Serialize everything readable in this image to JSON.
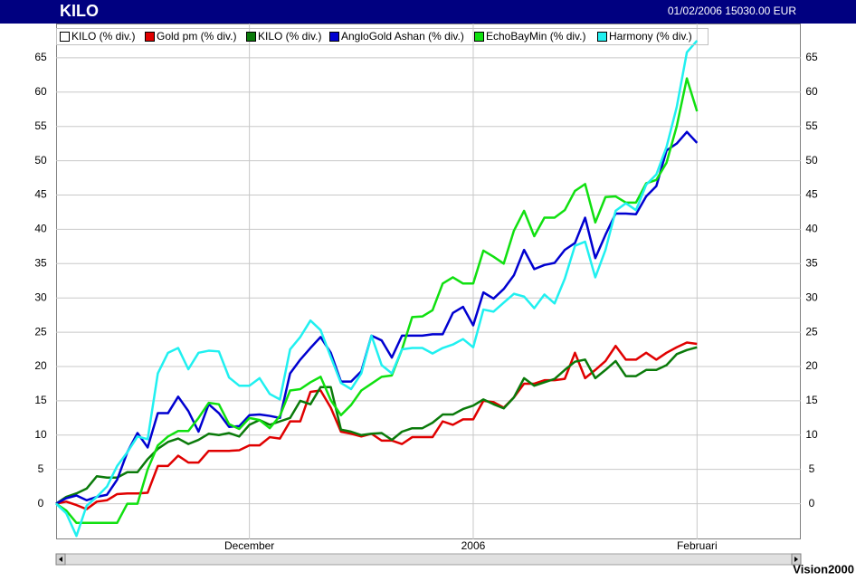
{
  "chart_data": {
    "type": "line",
    "title": "KILO",
    "subtitle": "01/02/2006 15030.00 EUR",
    "footer": "Vision2000",
    "series": [
      {
        "name": "KILO (% div.)",
        "color": "#ffffff",
        "values": [
          0,
          1,
          1.5,
          2.2,
          4,
          3.8,
          3.8,
          4.6,
          4.6,
          6.5,
          8,
          9,
          9.5,
          8.7,
          9.3,
          10.2,
          10,
          10.3,
          9.8,
          11.5,
          12.2,
          11.5,
          12,
          12.5,
          15,
          14.5,
          17,
          17,
          10.8,
          10.5,
          10,
          10.2,
          10.3,
          9.3,
          10.5,
          11,
          11,
          11.8,
          13,
          13,
          13.8,
          14.3,
          15.2,
          14.5,
          13.9,
          15.5,
          18.3,
          17.2,
          17.7,
          18.2,
          19.5,
          20.7,
          21,
          18.3,
          19.5,
          20.8,
          18.6,
          18.6,
          19.5,
          19.5,
          20.2,
          21.8,
          22.4,
          22.8
        ]
      },
      {
        "name": "Gold pm (% div.)",
        "color": "#e00000",
        "values": [
          0,
          0.3,
          -0.2,
          -0.8,
          0.3,
          0.5,
          1.4,
          1.5,
          1.5,
          1.6,
          5.5,
          5.5,
          7,
          6,
          6,
          7.7,
          7.7,
          7.7,
          7.8,
          8.5,
          8.5,
          9.7,
          9.5,
          12,
          12,
          16.3,
          16.5,
          14,
          10.5,
          10.2,
          9.8,
          10.2,
          9.2,
          9.2,
          8.7,
          9.7,
          9.7,
          9.7,
          12,
          11.5,
          12.3,
          12.3,
          15,
          14.8,
          14,
          15.5,
          17.5,
          17.5,
          18,
          18,
          18.2,
          22,
          18.3,
          19.5,
          20.8,
          23,
          21,
          21,
          22,
          21,
          22,
          22.8,
          23.5,
          23.3
        ]
      },
      {
        "name": "KILO (% div.)",
        "color": "#0a7a0a",
        "values": [
          0,
          1,
          1.5,
          2.2,
          4,
          3.8,
          3.8,
          4.6,
          4.6,
          6.5,
          8,
          9,
          9.5,
          8.7,
          9.3,
          10.2,
          10,
          10.3,
          9.8,
          11.5,
          12.2,
          11.5,
          12,
          12.5,
          15,
          14.5,
          17,
          17,
          10.8,
          10.5,
          10,
          10.2,
          10.3,
          9.3,
          10.5,
          11,
          11,
          11.8,
          13,
          13,
          13.8,
          14.3,
          15.2,
          14.5,
          13.9,
          15.5,
          18.3,
          17.2,
          17.7,
          18.2,
          19.5,
          20.7,
          21,
          18.3,
          19.5,
          20.8,
          18.6,
          18.6,
          19.5,
          19.5,
          20.2,
          21.8,
          22.4,
          22.8
        ]
      },
      {
        "name": "AngloGold Ashan (% div.)",
        "color": "#0000d0",
        "values": [
          0,
          0.8,
          1.2,
          0.5,
          1,
          1.3,
          3.5,
          7.5,
          10.3,
          8.2,
          13.2,
          13.2,
          15.6,
          13.5,
          10.5,
          14.5,
          13.2,
          11.2,
          11.3,
          12.9,
          13,
          12.8,
          12.5,
          19,
          21,
          22.7,
          24.3,
          22,
          17.8,
          17.8,
          19.3,
          24.5,
          23.8,
          21.3,
          24.5,
          24.5,
          24.5,
          24.7,
          24.7,
          27.8,
          28.7,
          26,
          30.8,
          29.9,
          31.3,
          33.3,
          37,
          34.2,
          34.8,
          35.1,
          37,
          38,
          41.7,
          35.8,
          39.2,
          42.3,
          42.3,
          42.2,
          44.8,
          46.3,
          51.5,
          52.5,
          54.2,
          52.6
        ]
      },
      {
        "name": "EchoBayMin (% div.)",
        "color": "#10e010",
        "values": [
          0,
          -1,
          -2.8,
          -2.8,
          -2.8,
          -2.8,
          -2.8,
          0,
          0,
          5,
          8.5,
          9.8,
          10.6,
          10.6,
          12.5,
          14.7,
          14.5,
          11.6,
          10.9,
          12.5,
          12.2,
          11,
          12.8,
          16.5,
          16.7,
          17.7,
          18.5,
          15.1,
          12.9,
          14.4,
          16.5,
          17.5,
          18.5,
          18.7,
          22.5,
          27.2,
          27.3,
          28.2,
          32.1,
          33,
          32.1,
          32.1,
          36.9,
          36,
          35,
          39.8,
          42.7,
          39,
          41.7,
          41.7,
          42.8,
          45.6,
          46.6,
          41,
          44.7,
          44.8,
          43.9,
          43.9,
          46.7,
          47.2,
          49.7,
          55,
          62,
          57.2
        ]
      },
      {
        "name": "Harmony (% div.)",
        "color": "#20f0f0",
        "values": [
          0,
          -1.4,
          -4.7,
          -0.3,
          1,
          2.5,
          5.5,
          7.5,
          9.8,
          9.4,
          19,
          22,
          22.7,
          19.6,
          22,
          22.3,
          22.2,
          18.4,
          17.2,
          17.2,
          18.3,
          16,
          15.2,
          22.5,
          24.3,
          26.7,
          25.3,
          21.4,
          17.6,
          16.7,
          19,
          24.5,
          20.2,
          19,
          22.5,
          22.7,
          22.7,
          21.9,
          22.7,
          23.2,
          24,
          22.8,
          28.3,
          28,
          29.3,
          30.6,
          30.2,
          28.5,
          30.5,
          29.2,
          32.8,
          37.6,
          38.2,
          33,
          37,
          42.7,
          43.8,
          42.8,
          46.5,
          48,
          52,
          57.8,
          65.8,
          67.5
        ]
      }
    ],
    "xlim": [
      0,
      73.2
    ],
    "xticks": [
      {
        "value": 19,
        "label": "December"
      },
      {
        "value": 41,
        "label": "2006"
      },
      {
        "value": 63,
        "label": "Februari"
      }
    ],
    "ylim": [
      -5.2,
      70
    ],
    "yticks": [
      0,
      5,
      10,
      15,
      20,
      25,
      30,
      35,
      40,
      45,
      50,
      55,
      60,
      65
    ],
    "grid": true
  }
}
